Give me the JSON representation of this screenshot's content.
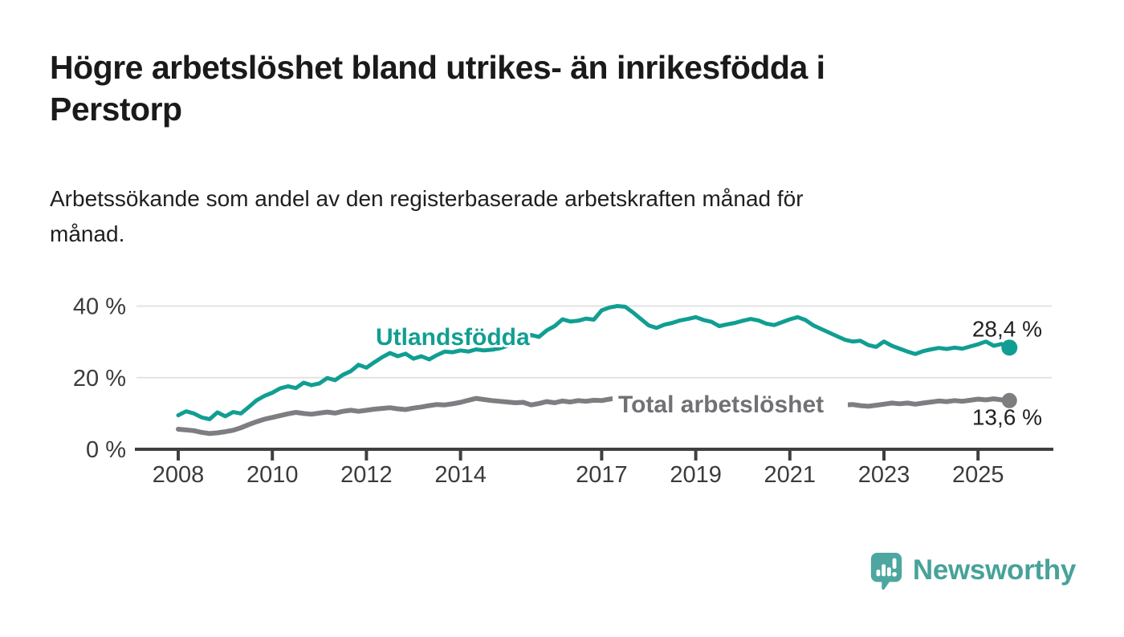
{
  "page": {
    "title_lines": [
      "Högre arbetslöshet bland utrikes- än inrikesfödda i",
      "Perstorp"
    ],
    "subtitle_lines": [
      "Arbetssökande som andel av den registerbaserade arbetskraften månad för",
      "månad."
    ],
    "background_color": "#ffffff",
    "logo": {
      "text": "Newsworthy",
      "icon": "bar-chart-speech-bubble-icon",
      "icon_color": "#4da7a0",
      "text_color": "#47a29a"
    }
  },
  "chart_data": {
    "type": "line",
    "title": "Högre arbetslöshet bland utrikes- än inrikesfödda i Perstorp",
    "subtitle": "Arbetssökande som andel av den registerbaserade arbetskraften månad för månad.",
    "unit": "%",
    "grid": "horizontal-only",
    "legend_position": "inline-labels",
    "x_start": 2008.0,
    "x_step": 0.1666667,
    "xlim": [
      2007.1,
      2026.6
    ],
    "ylim": [
      0,
      44
    ],
    "yticks": [
      {
        "value": 0,
        "label": "0 %"
      },
      {
        "value": 20,
        "label": "20 %"
      },
      {
        "value": 40,
        "label": "40 %"
      }
    ],
    "xticks": [
      {
        "value": 2008,
        "label": "2008"
      },
      {
        "value": 2010,
        "label": "2010"
      },
      {
        "value": 2012,
        "label": "2012"
      },
      {
        "value": 2014,
        "label": "2014"
      },
      {
        "value": 2017,
        "label": "2017"
      },
      {
        "value": 2019,
        "label": "2019"
      },
      {
        "value": 2021,
        "label": "2021"
      },
      {
        "value": 2023,
        "label": "2023"
      },
      {
        "value": 2025,
        "label": "2025"
      }
    ],
    "axis_color": "#3f3f3f",
    "gridline_color": "#e3e3e3",
    "tick_label_color": "#3b3b3b",
    "end_label_color": "#212121",
    "series": [
      {
        "name": "Utlandsfödda",
        "color": "#119e92",
        "label_color": "#119e92",
        "end_label": "28,4 %",
        "end_value": 28.4,
        "values": [
          9.5,
          10.6,
          10.0,
          8.9,
          8.4,
          10.3,
          9.2,
          10.4,
          10.0,
          11.8,
          13.7,
          14.9,
          15.8,
          17.0,
          17.6,
          17.1,
          18.6,
          17.9,
          18.4,
          19.9,
          19.3,
          20.8,
          21.8,
          23.6,
          22.8,
          24.3,
          25.7,
          26.9,
          26.0,
          26.7,
          25.3,
          26.0,
          25.1,
          26.3,
          27.3,
          27.1,
          27.6,
          27.3,
          27.9,
          27.6,
          27.8,
          28.2,
          28.9,
          29.6,
          30.6,
          31.9,
          31.4,
          33.2,
          34.4,
          36.3,
          35.7,
          35.9,
          36.5,
          36.2,
          38.8,
          39.6,
          40.0,
          39.8,
          38.2,
          36.4,
          34.6,
          33.9,
          34.8,
          35.3,
          36.0,
          36.4,
          36.9,
          36.1,
          35.6,
          34.4,
          34.9,
          35.3,
          35.9,
          36.4,
          36.0,
          35.1,
          34.7,
          35.5,
          36.3,
          36.9,
          36.1,
          34.6,
          33.6,
          32.6,
          31.6,
          30.6,
          30.1,
          30.3,
          29.1,
          28.6,
          30.1,
          28.9,
          28.1,
          27.3,
          26.6,
          27.4,
          27.9,
          28.3,
          28.0,
          28.4,
          28.1,
          28.7,
          29.3,
          30.1,
          28.9,
          29.4,
          28.4
        ]
      },
      {
        "name": "Total arbetslöshet",
        "color": "#7e7e82",
        "label_color": "#717175",
        "end_label": "13,6 %",
        "end_value": 13.6,
        "values": [
          5.6,
          5.4,
          5.2,
          4.7,
          4.4,
          4.6,
          4.9,
          5.3,
          6.0,
          6.9,
          7.7,
          8.4,
          8.9,
          9.4,
          9.9,
          10.3,
          10.0,
          9.8,
          10.1,
          10.4,
          10.1,
          10.6,
          10.9,
          10.6,
          10.9,
          11.2,
          11.4,
          11.6,
          11.3,
          11.1,
          11.5,
          11.8,
          12.2,
          12.5,
          12.4,
          12.7,
          13.1,
          13.7,
          14.2,
          13.9,
          13.6,
          13.4,
          13.2,
          13.0,
          13.1,
          12.4,
          12.8,
          13.3,
          13.0,
          13.5,
          13.2,
          13.6,
          13.4,
          13.7,
          13.6,
          14.0,
          14.3,
          14.0,
          13.7,
          13.5,
          13.8,
          13.5,
          13.2,
          13.4,
          13.1,
          13.3,
          13.5,
          13.2,
          13.0,
          12.8,
          13.1,
          13.3,
          13.4,
          13.7,
          13.9,
          13.6,
          13.4,
          13.6,
          13.8,
          13.5,
          13.2,
          12.9,
          12.7,
          12.9,
          12.6,
          12.4,
          12.5,
          12.2,
          12.0,
          12.3,
          12.6,
          12.9,
          12.7,
          12.9,
          12.6,
          12.9,
          13.2,
          13.5,
          13.3,
          13.6,
          13.4,
          13.7,
          14.0,
          13.8,
          14.1,
          13.8,
          13.6
        ]
      }
    ]
  }
}
